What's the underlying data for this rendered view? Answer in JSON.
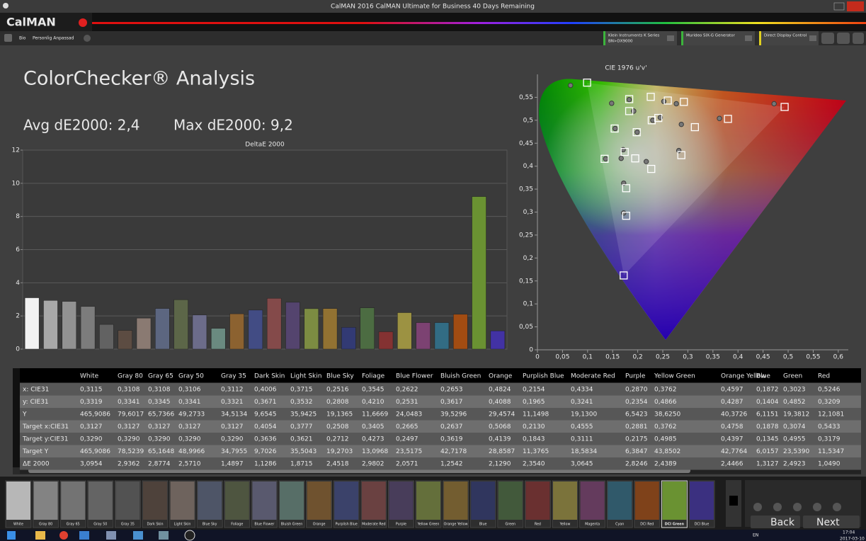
{
  "window": {
    "title": "CalMAN 2016 CalMAN Ultimate for Business 40 Days Remaining",
    "logo": "CalMAN"
  },
  "tabs": [
    "Bio",
    "Personlig Anpassad"
  ],
  "devices": [
    {
      "name": "Klein Instruments K Series",
      "detail": "BN>DX9000",
      "color": "#3cb43c"
    },
    {
      "name": "Murideo SIX-G Generator",
      "color": "#3cb43c"
    },
    {
      "name": "Direct Display Control",
      "color": "#e0d020"
    }
  ],
  "heading": "ColorChecker® Analysis",
  "avg": "Avg dE2000: 2,4",
  "max": "Max dE2000: 9,2",
  "chart_data": [
    {
      "type": "bar",
      "title": "DeltaE 2000",
      "values": [
        3.0954,
        2.9362,
        2.8774,
        2.571,
        1.4897,
        1.1286,
        1.8715,
        2.4518,
        2.9802,
        2.0571,
        1.2542,
        2.129,
        2.354,
        3.0645,
        2.8246,
        2.4389,
        2.4466,
        1.3127,
        2.4923,
        1.049,
        2.2,
        1.6,
        1.6,
        2.1,
        9.2,
        1.1
      ],
      "colors": [
        "#f2f2f2",
        "#a8a8a8",
        "#929292",
        "#7c7c7c",
        "#626262",
        "#5c4c42",
        "#8a7a72",
        "#5c6680",
        "#5c6648",
        "#6c6c8a",
        "#6a8a80",
        "#8c6230",
        "#424c84",
        "#844a4a",
        "#54446e",
        "#7c8c42",
        "#927232",
        "#323a74",
        "#4c6c42",
        "#843232",
        "#9c9242",
        "#7c4272",
        "#326c84",
        "#a24c12",
        "#6a9232",
        "#4232a4"
      ],
      "ylim": [
        0,
        12
      ],
      "yticks": [
        0,
        2,
        4,
        6,
        8,
        10,
        12
      ],
      "grid": true
    },
    {
      "type": "scatter",
      "title": "CIE 1976 u'v'",
      "xlim": [
        0,
        0.62
      ],
      "ylim": [
        0,
        0.6
      ],
      "xticks": [
        0,
        {
          "value": 0.05,
          "label": "0,05"
        },
        {
          "value": 0.1,
          "label": "0,1"
        },
        {
          "value": 0.15,
          "label": "0,15"
        },
        {
          "value": 0.2,
          "label": "0,2"
        },
        {
          "value": 0.25,
          "label": "0,25"
        },
        {
          "value": 0.3,
          "label": "0,3"
        },
        {
          "value": 0.35,
          "label": "0,35"
        },
        {
          "value": 0.4,
          "label": "0,4"
        },
        {
          "value": 0.45,
          "label": "0,45"
        },
        {
          "value": 0.5,
          "label": "0,5"
        },
        {
          "value": 0.55,
          "label": "0,55"
        },
        {
          "value": 0.6,
          "label": "0,6"
        }
      ],
      "yticks": [
        0,
        {
          "value": 0.05,
          "label": "0,05"
        },
        {
          "value": 0.1,
          "label": "0,1"
        },
        {
          "value": 0.15,
          "label": "0,15"
        },
        {
          "value": 0.2,
          "label": "0,2"
        },
        {
          "value": 0.25,
          "label": "0,25"
        },
        {
          "value": 0.3,
          "label": "0,3"
        },
        {
          "value": 0.35,
          "label": "0,35"
        },
        {
          "value": 0.4,
          "label": "0,4"
        },
        {
          "value": 0.45,
          "label": "0,45"
        },
        {
          "value": 0.5,
          "label": "0,5"
        },
        {
          "value": 0.55,
          "label": "0,55"
        }
      ],
      "series": [
        {
          "marker": "circle",
          "color": "#3a3a3a",
          "x": [
            0.066,
            0.148,
            0.183,
            0.192,
            0.155,
            0.199,
            0.171,
            0.167,
            0.136,
            0.217,
            0.23,
            0.245,
            0.252,
            0.277,
            0.287,
            0.282,
            0.363,
            0.472,
            0.172,
            0.172
          ],
          "y": [
            0.576,
            0.537,
            0.545,
            0.52,
            0.482,
            0.474,
            0.436,
            0.417,
            0.416,
            0.41,
            0.5,
            0.506,
            0.541,
            0.536,
            0.491,
            0.434,
            0.504,
            0.536,
            0.363,
            0.298
          ]
        },
        {
          "marker": "square",
          "color": "#ffffff",
          "x": [
            0.099,
            0.183,
            0.226,
            0.26,
            0.292,
            0.183,
            0.228,
            0.241,
            0.314,
            0.38,
            0.493,
            0.154,
            0.198,
            0.174,
            0.195,
            0.134,
            0.227,
            0.287,
            0.177,
            0.177,
            0.172
          ],
          "y": [
            0.582,
            0.546,
            0.551,
            0.543,
            0.54,
            0.52,
            0.5,
            0.505,
            0.485,
            0.503,
            0.529,
            0.482,
            0.474,
            0.431,
            0.417,
            0.416,
            0.394,
            0.424,
            0.352,
            0.292,
            0.162
          ]
        }
      ]
    }
  ],
  "table": {
    "columns": [
      "White",
      "Gray 80",
      "Gray 65",
      "Gray 50",
      "Gray 35",
      "Dark Skin",
      "Light Skin",
      "Blue Sky",
      "Foliage",
      "Blue Flower",
      "Bluish Green",
      "Orange",
      "Purplish Blue",
      "Moderate Red",
      "Purple",
      "Yellow Green",
      "Orange Yellow",
      "Blue",
      "Green",
      "Red"
    ],
    "rows": [
      {
        "label": "x: CIE31",
        "cells": [
          "0,3115",
          "0,3108",
          "0,3108",
          "0,3106",
          "0,3112",
          "0,4006",
          "0,3715",
          "0,2516",
          "0,3545",
          "0,2622",
          "0,2653",
          "0,4824",
          "0,2154",
          "0,4334",
          "0,2870",
          "0,3762",
          "0,4597",
          "0,1872",
          "0,3023",
          "0,5246"
        ]
      },
      {
        "label": "y: CIE31",
        "cells": [
          "0,3319",
          "0,3341",
          "0,3345",
          "0,3341",
          "0,3321",
          "0,3671",
          "0,3532",
          "0,2808",
          "0,4210",
          "0,2531",
          "0,3617",
          "0,4088",
          "0,1965",
          "0,3241",
          "0,2354",
          "0,4866",
          "0,4287",
          "0,1404",
          "0,4852",
          "0,3209"
        ]
      },
      {
        "label": "Y",
        "cells": [
          "465,9086",
          "79,6017",
          "65,7366",
          "49,2733",
          "34,5134",
          "9,6545",
          "35,9425",
          "19,1365",
          "11,6669",
          "24,0483",
          "39,5296",
          "29,4574",
          "11,1498",
          "19,1300",
          "6,5423",
          "38,6250",
          "40,3726",
          "6,1151",
          "19,3812",
          "12,1081"
        ]
      },
      {
        "label": "Target x:CIE31",
        "cells": [
          "0,3127",
          "0,3127",
          "0,3127",
          "0,3127",
          "0,3127",
          "0,4054",
          "0,3777",
          "0,2508",
          "0,3405",
          "0,2665",
          "0,2637",
          "0,5068",
          "0,2130",
          "0,4555",
          "0,2881",
          "0,3762",
          "0,4758",
          "0,1878",
          "0,3074",
          "0,5433"
        ]
      },
      {
        "label": "Target y:CIE31",
        "cells": [
          "0,3290",
          "0,3290",
          "0,3290",
          "0,3290",
          "0,3290",
          "0,3636",
          "0,3621",
          "0,2712",
          "0,4273",
          "0,2497",
          "0,3619",
          "0,4139",
          "0,1843",
          "0,3111",
          "0,2175",
          "0,4985",
          "0,4397",
          "0,1345",
          "0,4955",
          "0,3179"
        ]
      },
      {
        "label": "Target Y",
        "cells": [
          "465,9086",
          "78,5239",
          "65,1648",
          "48,9966",
          "34,7955",
          "9,7026",
          "35,5043",
          "19,2703",
          "13,0968",
          "23,5175",
          "42,7178",
          "28,8587",
          "11,3765",
          "18,5834",
          "6,3847",
          "43,8502",
          "42,7764",
          "6,0157",
          "23,5390",
          "11,5347"
        ]
      },
      {
        "label": "ΔE 2000",
        "cells": [
          "3,0954",
          "2,9362",
          "2,8774",
          "2,5710",
          "1,4897",
          "1,1286",
          "1,8715",
          "2,4518",
          "2,9802",
          "2,0571",
          "1,2542",
          "2,1290",
          "2,3540",
          "3,0645",
          "2,8246",
          "2,4389",
          "2,4466",
          "1,3127",
          "2,4923",
          "1,0490"
        ]
      }
    ]
  },
  "patches": [
    "White",
    "Gray 80",
    "Gray 65",
    "Gray 50",
    "Gray 35",
    "Dark Skin",
    "Light Skin",
    "Blue Sky",
    "Foliage",
    "Blue Flower",
    "Bluish Green",
    "Orange",
    "Purplish Blue",
    "Moderate Red",
    "Purple",
    "Yellow Green",
    "Orange Yellow",
    "Blue",
    "Green",
    "Red",
    "Yellow",
    "Magenta",
    "Cyan",
    "DCI Red",
    "DCI Green",
    "DCI Blue"
  ],
  "selected_patch": 24,
  "nav": {
    "back": "Back",
    "next": "Next"
  },
  "taskbar": {
    "lang": "EN",
    "time": "17:04",
    "date": "2017-03-10"
  }
}
